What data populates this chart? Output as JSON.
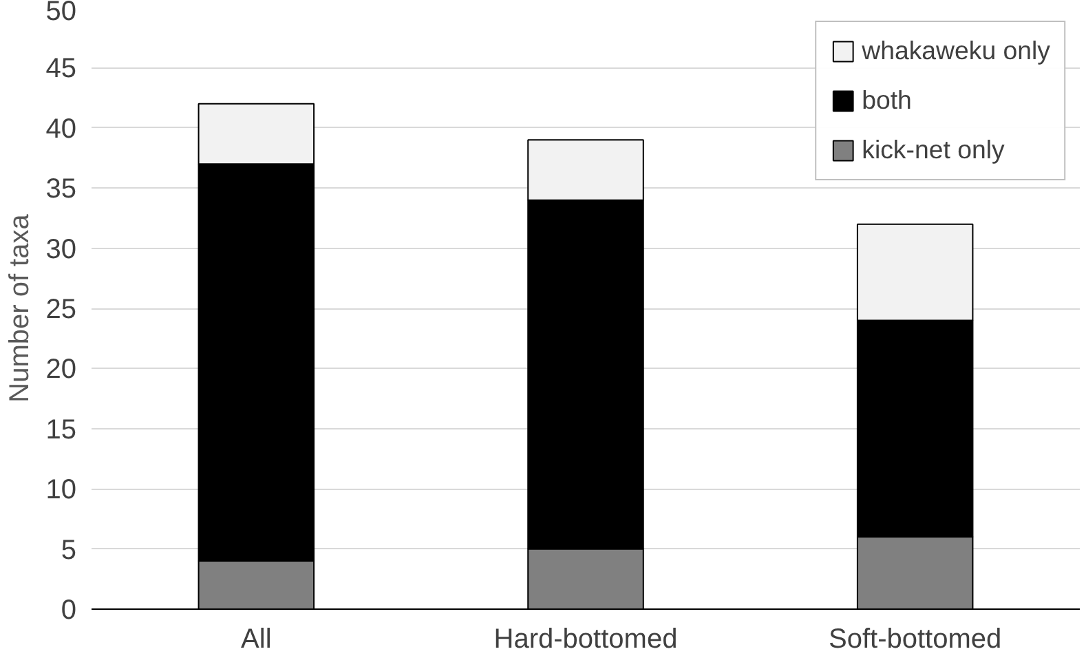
{
  "chart_data": {
    "type": "bar",
    "stacked": true,
    "categories": [
      "All",
      "Hard-bottomed",
      "Soft-bottomed"
    ],
    "series": [
      {
        "name": "kick-net only",
        "color": "#808080",
        "values": [
          4,
          5,
          6
        ]
      },
      {
        "name": "both",
        "color": "#000000",
        "values": [
          33,
          29,
          18
        ]
      },
      {
        "name": "whakaweku only",
        "color": "#f2f2f2",
        "values": [
          5,
          5,
          8
        ]
      }
    ],
    "ylabel": "Number of taxa",
    "ylim": [
      0,
      50
    ],
    "yticks": [
      0,
      5,
      10,
      15,
      20,
      25,
      30,
      35,
      40,
      45,
      50
    ],
    "grid": "y",
    "legend": "top right"
  }
}
